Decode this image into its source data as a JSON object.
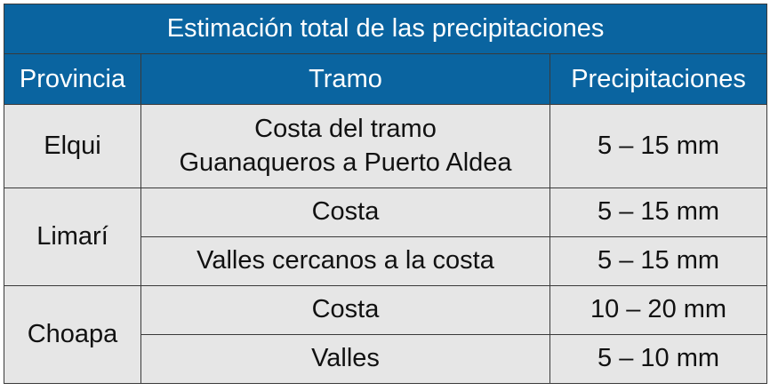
{
  "table": {
    "title": "Estimación total de las precipitaciones",
    "headers": [
      "Provincia",
      "Tramo",
      "Precipitaciones"
    ],
    "rows": [
      {
        "province": "Elqui",
        "segments": [
          {
            "tramo": "Costa del tramo\nGuanaqueros a Puerto Aldea",
            "precip": "5 – 15 mm"
          }
        ]
      },
      {
        "province": "Limarí",
        "segments": [
          {
            "tramo": "Costa",
            "precip": "5 – 15 mm"
          },
          {
            "tramo": "Valles cercanos a la costa",
            "precip": "5 – 15 mm"
          }
        ]
      },
      {
        "province": "Choapa",
        "segments": [
          {
            "tramo": "Costa",
            "precip": "10 – 20 mm"
          },
          {
            "tramo": "Valles",
            "precip": "5 – 10 mm"
          }
        ]
      }
    ]
  }
}
